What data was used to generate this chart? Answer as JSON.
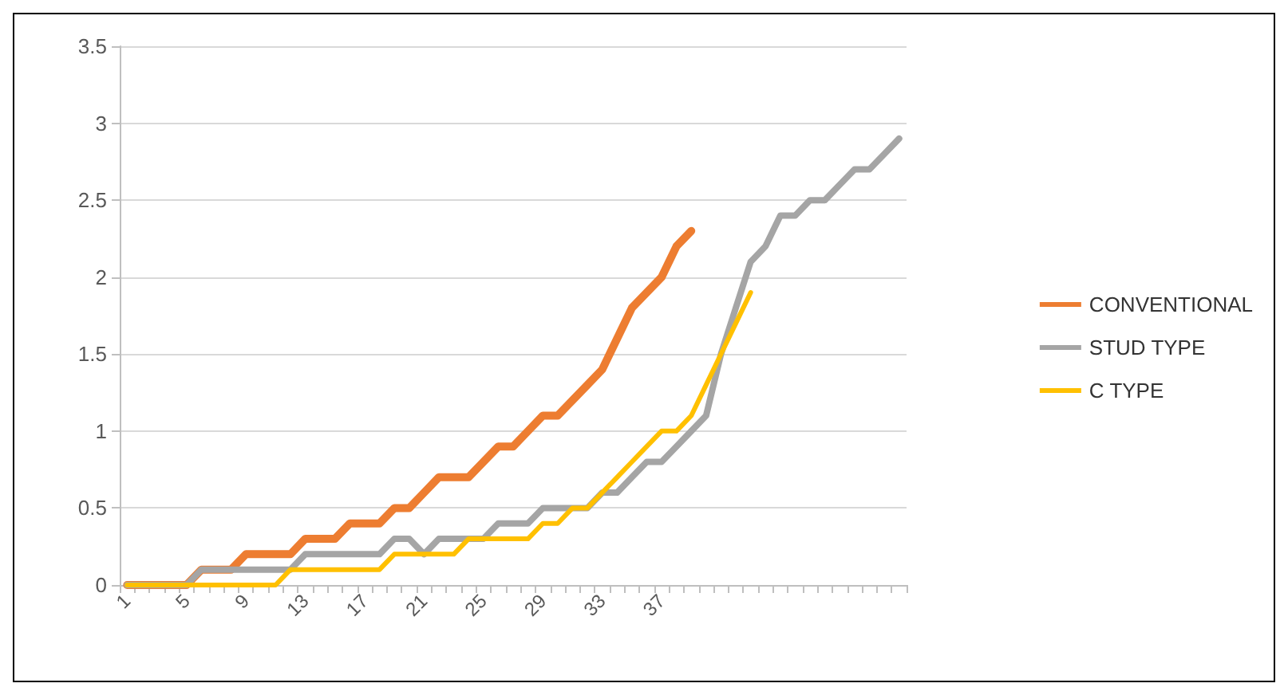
{
  "chart_data": {
    "type": "line",
    "categories": [
      "1",
      null,
      null,
      null,
      "5",
      null,
      null,
      null,
      "9",
      null,
      null,
      null,
      "13",
      null,
      null,
      null,
      "17",
      null,
      null,
      null,
      "21",
      null,
      null,
      null,
      "25",
      null,
      null,
      null,
      "29",
      null,
      null,
      null,
      "33",
      null,
      null,
      null,
      "37",
      null,
      null,
      null,
      null,
      null,
      null,
      null,
      null,
      null,
      null,
      null,
      null,
      null,
      null,
      null,
      null
    ],
    "series": [
      {
        "name": "CONVENTIONAL",
        "color": "#ed7d31",
        "values": [
          0,
          0,
          0,
          0,
          0,
          0.1,
          0.1,
          0.1,
          0.2,
          0.2,
          0.2,
          0.2,
          0.3,
          0.3,
          0.3,
          0.4,
          0.4,
          0.4,
          0.5,
          0.5,
          0.6,
          0.7,
          0.7,
          0.7,
          0.8,
          0.9,
          0.9,
          1.0,
          1.1,
          1.1,
          1.2,
          1.3,
          1.4,
          1.6,
          1.8,
          1.9,
          2.0,
          2.2,
          2.3,
          null,
          null,
          null,
          null,
          null,
          null,
          null,
          null,
          null,
          null,
          null,
          null,
          null,
          null
        ]
      },
      {
        "name": "STUD TYPE",
        "color": "#a5a5a5",
        "values": [
          0,
          0,
          0,
          0,
          0,
          0.1,
          0.1,
          0.1,
          0.1,
          0.1,
          0.1,
          0.1,
          0.2,
          0.2,
          0.2,
          0.2,
          0.2,
          0.2,
          0.3,
          0.3,
          0.2,
          0.3,
          0.3,
          0.3,
          0.3,
          0.4,
          0.4,
          0.4,
          0.5,
          0.5,
          0.5,
          0.5,
          0.6,
          0.6,
          0.7,
          0.8,
          0.8,
          0.9,
          1.0,
          1.1,
          1.5,
          1.8,
          2.1,
          2.2,
          2.4,
          2.4,
          2.5,
          2.5,
          2.6,
          2.7,
          2.7,
          2.8,
          2.9
        ]
      },
      {
        "name": "C TYPE",
        "color": "#ffc000",
        "values": [
          0,
          0,
          0,
          0,
          0,
          0,
          0,
          0,
          0,
          0,
          0,
          0.1,
          0.1,
          0.1,
          0.1,
          0.1,
          0.1,
          0.1,
          0.2,
          0.2,
          0.2,
          0.2,
          0.2,
          0.3,
          0.3,
          0.3,
          0.3,
          0.3,
          0.4,
          0.4,
          0.5,
          0.5,
          0.6,
          0.7,
          0.8,
          0.9,
          1.0,
          1.0,
          1.1,
          1.3,
          1.5,
          1.7,
          1.9,
          null,
          null,
          null,
          null,
          null,
          null,
          null,
          null,
          null,
          null
        ]
      }
    ],
    "ylim": [
      0,
      3.5
    ],
    "yticks": [
      0,
      0.5,
      1,
      1.5,
      2,
      2.5,
      3,
      3.5
    ],
    "grid": "y",
    "legend": "right",
    "marker": "none",
    "line_style": "solid"
  }
}
